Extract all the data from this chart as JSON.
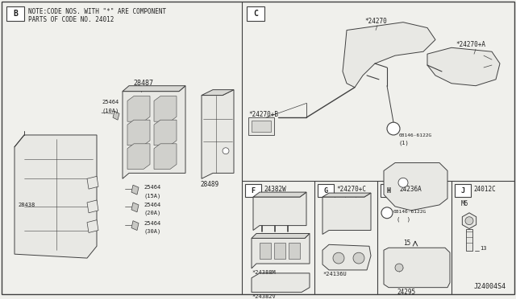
{
  "bg_color": "#f0f0ec",
  "line_color": "#404040",
  "text_color": "#202020",
  "fill_light": "#e8e8e4",
  "fill_white": "#ffffff",
  "note_line1": "NOTE:CODE NOS. WITH \"*\" ARE COMPONENT",
  "note_line2": "PARTS OF CODE NO. 24012",
  "footer": "J24004S4",
  "figsize": [
    6.4,
    3.72
  ],
  "dpi": 100
}
